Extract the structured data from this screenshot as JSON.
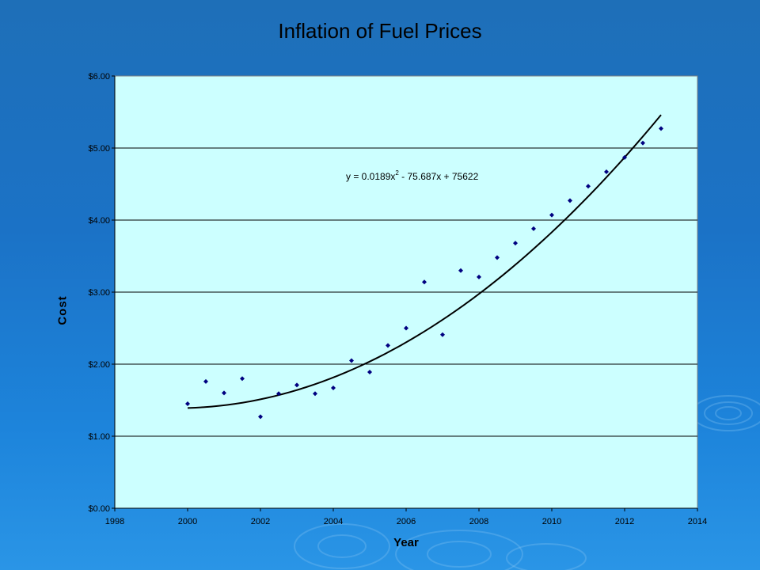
{
  "chart_data": {
    "type": "scatter",
    "title": "Inflation of Fuel Prices",
    "xlabel": "Year",
    "ylabel": "Cost",
    "xlim": [
      1998,
      2014
    ],
    "ylim": [
      0,
      6
    ],
    "x_ticks": [
      "1998",
      "2000",
      "2002",
      "2004",
      "2006",
      "2008",
      "2010",
      "2012",
      "2014"
    ],
    "y_ticks": [
      "$0.00",
      "$1.00",
      "$2.00",
      "$3.00",
      "$4.00",
      "$5.00",
      "$6.00"
    ],
    "grid": "horizontal",
    "plot_background": "#ccffff",
    "marker_color": "#000080",
    "points": [
      {
        "x": 2000.0,
        "y": 1.45
      },
      {
        "x": 2000.5,
        "y": 1.76
      },
      {
        "x": 2001.0,
        "y": 1.6
      },
      {
        "x": 2001.5,
        "y": 1.8
      },
      {
        "x": 2002.0,
        "y": 1.27
      },
      {
        "x": 2002.5,
        "y": 1.59
      },
      {
        "x": 2003.0,
        "y": 1.71
      },
      {
        "x": 2003.5,
        "y": 1.59
      },
      {
        "x": 2004.0,
        "y": 1.67
      },
      {
        "x": 2004.5,
        "y": 2.05
      },
      {
        "x": 2005.0,
        "y": 1.89
      },
      {
        "x": 2005.5,
        "y": 2.26
      },
      {
        "x": 2006.0,
        "y": 2.5
      },
      {
        "x": 2006.5,
        "y": 3.14
      },
      {
        "x": 2007.0,
        "y": 2.41
      },
      {
        "x": 2007.5,
        "y": 3.3
      },
      {
        "x": 2008.0,
        "y": 3.21
      },
      {
        "x": 2008.5,
        "y": 3.48
      },
      {
        "x": 2009.0,
        "y": 3.68
      },
      {
        "x": 2009.5,
        "y": 3.88
      },
      {
        "x": 2010.0,
        "y": 4.07
      },
      {
        "x": 2010.5,
        "y": 4.27
      },
      {
        "x": 2011.0,
        "y": 4.47
      },
      {
        "x": 2011.5,
        "y": 4.67
      },
      {
        "x": 2012.0,
        "y": 4.87
      },
      {
        "x": 2012.5,
        "y": 5.07
      },
      {
        "x": 2013.0,
        "y": 5.27
      }
    ],
    "trendline": {
      "type": "polynomial-2",
      "x_range": [
        2000,
        2013
      ],
      "y_at_start": 1.4,
      "y_at_vertex": 1.39,
      "vertex_x": 1999.7,
      "y_at_end": 5.46,
      "equation_main": "y = 0.0189x",
      "equation_exponent": "2",
      "equation_rest": " - 75.687x + 75622"
    }
  }
}
